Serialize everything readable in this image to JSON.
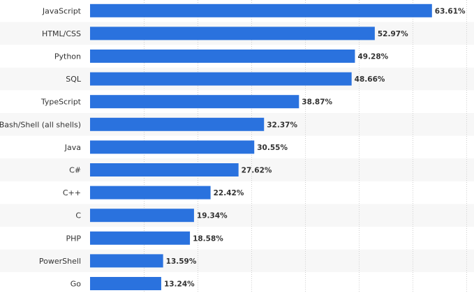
{
  "chart_data": {
    "type": "bar",
    "orientation": "horizontal",
    "categories": [
      "JavaScript",
      "HTML/CSS",
      "Python",
      "SQL",
      "TypeScript",
      "Bash/Shell (all shells)",
      "Java",
      "C#",
      "C++",
      "C",
      "PHP",
      "PowerShell",
      "Go"
    ],
    "values": [
      63.61,
      52.97,
      49.28,
      48.66,
      38.87,
      32.37,
      30.55,
      27.62,
      22.42,
      19.34,
      18.58,
      13.59,
      13.24
    ],
    "value_labels": [
      "63.61%",
      "52.97%",
      "49.28%",
      "48.66%",
      "38.87%",
      "32.37%",
      "30.55%",
      "27.62%",
      "22.42%",
      "19.34%",
      "18.58%",
      "13.59%",
      "13.24%"
    ],
    "xlim": [
      0,
      70
    ],
    "grid": true,
    "bar_color": "#2a72de",
    "alt_row_color": "#f7f7f7"
  }
}
